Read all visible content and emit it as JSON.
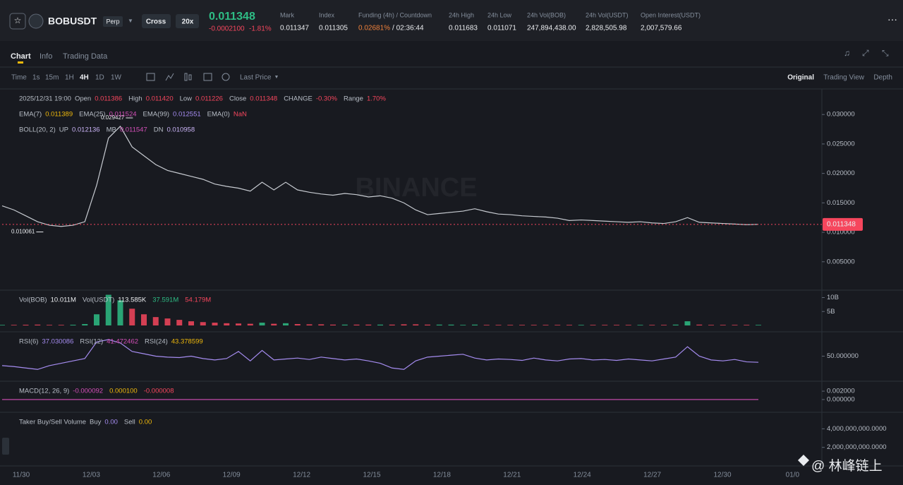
{
  "header": {
    "symbol": "BOBUSDT",
    "contract": "Perp",
    "margin_mode": "Cross",
    "leverage": "20x",
    "last_price": "0.011348",
    "change": "-0.0002100",
    "change_pct": "-1.81%",
    "stats": [
      {
        "label": "Mark",
        "value": "0.011347"
      },
      {
        "label": "Index",
        "value": "0.011305"
      },
      {
        "label": "Funding (4h) / Countdown",
        "value": "0.02681%",
        "extra": "/ 02:36:44",
        "value_color": "#f0813b"
      },
      {
        "label": "24h High",
        "value": "0.011683"
      },
      {
        "label": "24h Low",
        "value": "0.011071"
      },
      {
        "label": "24h Vol(BOB)",
        "value": "247,894,438.00"
      },
      {
        "label": "24h Vol(USDT)",
        "value": "2,828,505.98"
      },
      {
        "label": "Open Interest(USDT)",
        "value": "2,007,579.66"
      }
    ]
  },
  "tabs": [
    "Chart",
    "Info",
    "Trading Data"
  ],
  "toolbar": {
    "intervals": [
      "Time",
      "1s",
      "15m",
      "1H",
      "4H",
      "1D",
      "1W"
    ],
    "price_type": "Last Price",
    "views": [
      "Original",
      "Trading View",
      "Depth"
    ]
  },
  "time_axis": {
    "labels": [
      "11/30",
      "12/03",
      "12/06",
      "12/09",
      "12/12",
      "12/15",
      "12/18",
      "12/21",
      "12/24",
      "12/27",
      "12/30",
      "01/0"
    ]
  },
  "watermarks": [
    "BINANCE",
    "@ 林峰链上"
  ],
  "chart_data": [
    {
      "type": "line",
      "color": "#c7cbd1",
      "legend": [
        [
          {
            "label": "2025/12/31 19:00"
          },
          {
            "label": "Open",
            "value": "0.011386",
            "color": "#f6465d"
          },
          {
            "label": "High",
            "value": "0.011420",
            "color": "#f6465d"
          },
          {
            "label": "Low",
            "value": "0.011226",
            "color": "#f6465d"
          },
          {
            "label": "Close",
            "value": "0.011348",
            "color": "#f6465d"
          },
          {
            "label": "CHANGE",
            "value": "-0.30%",
            "color": "#f6465d"
          },
          {
            "label": "Range",
            "value": "1.70%",
            "color": "#f6465d"
          }
        ],
        [
          {
            "label": "EMA(7)",
            "value": "0.011389",
            "color": "#f0b90b"
          },
          {
            "label": "EMA(25)",
            "value": "0.011524",
            "color": "#d44fb8"
          },
          {
            "label": "EMA(99)",
            "value": "0.012551",
            "color": "#a58cf0"
          },
          {
            "label": "EMA(0)",
            "value": "NaN",
            "color": "#f6465d"
          }
        ],
        [
          {
            "label": "BOLL(20, 2)"
          },
          {
            "label": "UP",
            "value": "0.012136",
            "color": "#c9b3f5"
          },
          {
            "label": "MB",
            "value": "0.011547",
            "color": "#d44fb8"
          },
          {
            "label": "DN",
            "value": "0.010958",
            "color": "#c9b3f5"
          }
        ]
      ],
      "values": [
        0.0145,
        0.0138,
        0.0128,
        0.0118,
        0.0112,
        0.011,
        0.0112,
        0.0118,
        0.018,
        0.026,
        0.028,
        0.0245,
        0.023,
        0.0215,
        0.0205,
        0.02,
        0.0195,
        0.019,
        0.0182,
        0.0178,
        0.0175,
        0.017,
        0.0185,
        0.0172,
        0.0185,
        0.0172,
        0.0168,
        0.0165,
        0.0163,
        0.0166,
        0.0164,
        0.016,
        0.0162,
        0.0158,
        0.015,
        0.0138,
        0.013,
        0.0132,
        0.0134,
        0.0136,
        0.014,
        0.0135,
        0.0131,
        0.013,
        0.0128,
        0.0127,
        0.0126,
        0.0124,
        0.012,
        0.0121,
        0.012,
        0.0119,
        0.0118,
        0.0117,
        0.0118,
        0.0116,
        0.0115,
        0.0118,
        0.0125,
        0.0117,
        0.0116,
        0.0115,
        0.0114,
        0.0113,
        0.011348
      ],
      "ylim": [
        0.0003,
        0.0341
      ],
      "yticks": [
        {
          "value": 0.03,
          "label": "0.030000"
        },
        {
          "value": 0.025,
          "label": "0.025000"
        },
        {
          "value": 0.02,
          "label": "0.020000"
        },
        {
          "value": 0.015,
          "label": "0.015000"
        },
        {
          "value": 0.01,
          "label": "0.010000"
        },
        {
          "value": 0.005,
          "label": "0.005000"
        }
      ],
      "annotations": [
        {
          "value": 0.029427,
          "label": "0.029427"
        },
        {
          "value": 0.010061,
          "label": "0.010061"
        }
      ],
      "last_price": {
        "value": 0.011348,
        "label": "0.011348"
      }
    },
    {
      "type": "bar",
      "up_color": "#2ebd85",
      "down_color": "#f6465d",
      "legend": [
        [
          {
            "label": "Vol(BOB)",
            "value": "10.011M",
            "color": "#eaecef"
          },
          {
            "label": "Vol(USDT)",
            "value": "113.585K",
            "color": "#eaecef"
          },
          {
            "value": "37.591M",
            "color": "#2ebd85"
          },
          {
            "value": "54.179M",
            "color": "#f6465d"
          }
        ]
      ],
      "values": [
        200000000,
        200000000,
        250000000,
        300000000,
        200000000,
        200000000,
        250000000,
        500000000,
        4000000000,
        11000000000,
        9000000000,
        6000000000,
        4000000000,
        3000000000,
        2500000000,
        2000000000,
        1500000000,
        1200000000,
        1000000000,
        800000000,
        700000000,
        600000000,
        1000000000,
        600000000,
        800000000,
        500000000,
        400000000,
        400000000,
        300000000,
        300000000,
        300000000,
        300000000,
        300000000,
        300000000,
        400000000,
        400000000,
        300000000,
        300000000,
        300000000,
        200000000,
        300000000,
        200000000,
        200000000,
        200000000,
        200000000,
        200000000,
        200000000,
        200000000,
        200000000,
        200000000,
        200000000,
        200000000,
        200000000,
        200000000,
        200000000,
        200000000,
        200000000,
        300000000,
        1500000000,
        300000000,
        200000000,
        200000000,
        200000000,
        200000000,
        200000000
      ],
      "ylim": [
        0,
        12400000000
      ],
      "yticks": [
        {
          "value": 10000000000,
          "label": "10B"
        },
        {
          "value": 5000000000,
          "label": "5B"
        }
      ]
    },
    {
      "type": "line",
      "color": "#a58cf0",
      "legend": [
        [
          {
            "label": "RSI(6)",
            "value": "37.030086",
            "color": "#a58cf0"
          },
          {
            "label": "RSI(12)",
            "value": "41.472462",
            "color": "#d44fb8"
          },
          {
            "label": "RSI(24)",
            "value": "43.378599",
            "color": "#f0b90b"
          }
        ]
      ],
      "values": [
        30,
        28,
        25,
        22,
        30,
        35,
        40,
        45,
        80,
        85,
        78,
        60,
        55,
        50,
        48,
        47,
        50,
        45,
        42,
        45,
        60,
        40,
        62,
        42,
        44,
        46,
        43,
        48,
        45,
        42,
        44,
        40,
        35,
        25,
        22,
        40,
        48,
        50,
        52,
        54,
        46,
        42,
        44,
        43,
        41,
        46,
        42,
        40,
        44,
        45,
        42,
        43,
        41,
        44,
        42,
        40,
        44,
        48,
        70,
        50,
        42,
        40,
        43,
        38,
        37
      ],
      "ylim": [
        0,
        100
      ],
      "yticks": [
        {
          "value": 50,
          "label": "50.000000"
        }
      ]
    },
    {
      "type": "line",
      "color": "#d44fb8",
      "legend": [
        [
          {
            "label": "MACD(12, 26, 9)",
            "value": "-0.000092",
            "color": "#d44fb8"
          },
          {
            "value": "0.000100",
            "color": "#f0b90b"
          },
          {
            "value": "-0.000008",
            "color": "#f6465d"
          }
        ]
      ],
      "ylim": [
        -0.0027,
        0.0042
      ],
      "yticks": [
        {
          "value": 0.002,
          "label": "0.002000"
        },
        {
          "value": 0,
          "label": "0.000000"
        }
      ]
    },
    {
      "type": "bar",
      "legend": [
        [
          {
            "label": "Taker Buy/Sell Volume"
          },
          {
            "label": "Buy",
            "value": "0.00",
            "color": "#a58cf0"
          },
          {
            "label": "Sell",
            "value": "0.00",
            "color": "#f0b90b"
          }
        ]
      ],
      "ylim": [
        0,
        5700000000
      ],
      "yticks": [
        {
          "value": 4000000000,
          "label": "4,000,000,000.0000"
        },
        {
          "value": 2000000000,
          "label": "2,000,000,000.0000"
        }
      ]
    }
  ]
}
